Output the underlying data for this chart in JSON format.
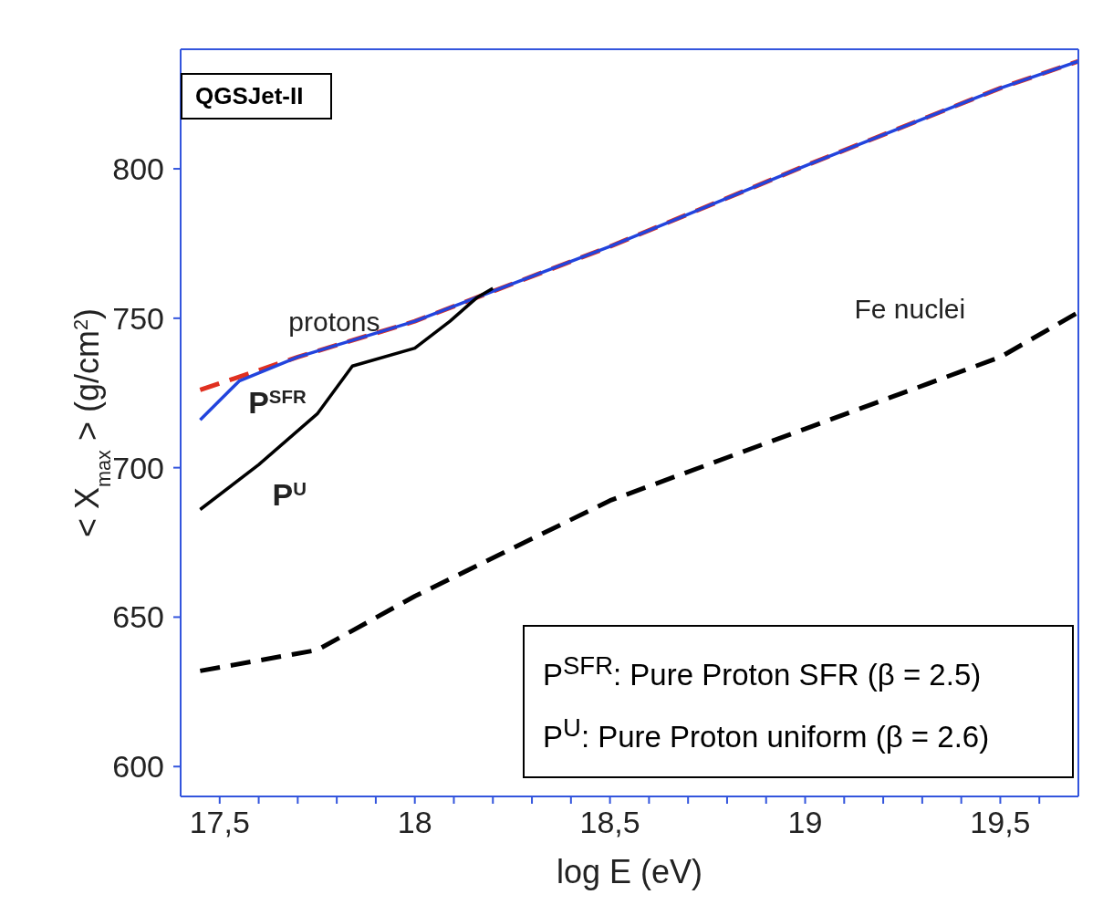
{
  "chart_data": {
    "type": "line",
    "xlabel": "log E (eV)",
    "ylabel": "< X$_{max}$ > (g/cm$^{2}$)",
    "xlim": [
      17.4,
      19.7
    ],
    "ylim": [
      590,
      840
    ],
    "xticks": [
      {
        "value": 17.5,
        "label": "17,5"
      },
      {
        "value": 17.6,
        "label": null
      },
      {
        "value": 17.7,
        "label": null
      },
      {
        "value": 17.8,
        "label": null
      },
      {
        "value": 17.9,
        "label": null
      },
      18,
      {
        "value": 18.1,
        "label": null
      },
      {
        "value": 18.2,
        "label": null
      },
      {
        "value": 18.3,
        "label": null
      },
      {
        "value": 18.4,
        "label": null
      },
      {
        "value": 18.5,
        "label": "18,5"
      },
      {
        "value": 18.6,
        "label": null
      },
      {
        "value": 18.7,
        "label": null
      },
      {
        "value": 18.8,
        "label": null
      },
      {
        "value": 18.9,
        "label": null
      },
      19,
      {
        "value": 19.1,
        "label": null
      },
      {
        "value": 19.2,
        "label": null
      },
      {
        "value": 19.3,
        "label": null
      },
      {
        "value": 19.4,
        "label": null
      },
      {
        "value": 19.5,
        "label": "19,5"
      },
      {
        "value": 19.6,
        "label": null
      }
    ],
    "yticks": [
      600,
      650,
      700,
      750,
      800
    ],
    "marker": "none",
    "series": [
      {
        "color": "#e03020",
        "line_style": "dashed",
        "x": [
          17.45,
          17.7,
          18,
          18.5,
          19,
          19.5,
          19.7
        ],
        "values": [
          726,
          737,
          749,
          774,
          801,
          827,
          836
        ]
      },
      {
        "color": "#2244dd",
        "line_style": "solid",
        "x": [
          17.45,
          17.55,
          17.7,
          18,
          18.5,
          19,
          19.5,
          19.7
        ],
        "values": [
          716,
          729,
          737,
          749,
          774,
          801,
          827,
          836
        ]
      },
      {
        "color": "#000000",
        "line_style": "solid",
        "x": [
          17.45,
          17.6,
          17.75,
          17.84,
          18,
          18.09,
          18.16,
          18.2
        ],
        "values": [
          686,
          701,
          718,
          734,
          740,
          749,
          757,
          760
        ]
      },
      {
        "color": "#000000",
        "line_style": "dashed",
        "x": [
          17.45,
          17.75,
          18,
          18.5,
          19,
          19.5,
          19.7
        ],
        "values": [
          632,
          639,
          657,
          689,
          713,
          737,
          752
        ]
      }
    ],
    "annotations": [
      "QGSJet-II",
      "P$^{SFR}$: Pure Proton SFR (β = 2.5)",
      "P$^{U}$: Pure Proton uniform (β = 2.6)",
      {
        "text": "protons",
        "x": 17.7,
        "y": 737
      },
      {
        "text": "P$^{SFR}$",
        "x": 17.55,
        "y": 729
      },
      {
        "text": "P$^{U}$",
        "x": 17.6,
        "y": 701
      },
      {
        "text": "Fe nuclei",
        "x": 19.5,
        "y": 737
      }
    ]
  }
}
